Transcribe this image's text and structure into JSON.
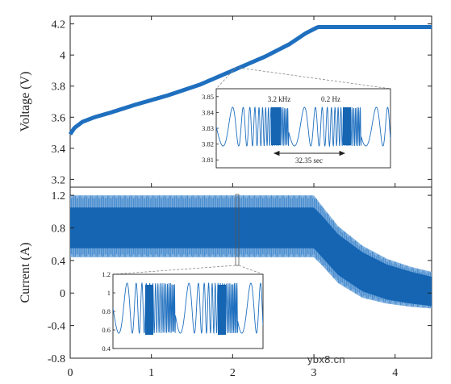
{
  "watermark": "ybx8.cn",
  "chart_data": [
    {
      "type": "line",
      "panel": "voltage",
      "ylabel": "Voltage (V)",
      "xlim": [
        0,
        4.45
      ],
      "ylim": [
        3.15,
        4.25
      ],
      "yticks": [
        "3.2",
        "3.4",
        "3.6",
        "3.8",
        "4",
        "4.2"
      ],
      "ytick_values": [
        3.2,
        3.4,
        3.6,
        3.8,
        4.0,
        4.2
      ],
      "color": "#1f6fbf",
      "series": [
        {
          "x": [
            0,
            0.05,
            0.15,
            0.3,
            0.5,
            0.8,
            1.2,
            1.6,
            2.0,
            2.4,
            2.7,
            2.9,
            3.05,
            3.5,
            4.0,
            4.45
          ],
          "y": [
            3.49,
            3.53,
            3.57,
            3.6,
            3.63,
            3.68,
            3.74,
            3.81,
            3.9,
            3.99,
            4.07,
            4.14,
            4.18,
            4.18,
            4.18,
            4.18
          ]
        }
      ],
      "inset": {
        "ylim": [
          3.805,
          3.855
        ],
        "yticks": [
          "3.81",
          "3.82",
          "3.83",
          "3.84",
          "3.85"
        ],
        "ytick_values": [
          3.81,
          3.82,
          3.83,
          3.84,
          3.85
        ],
        "annotations": [
          "3.2 kHz",
          "0.2 Hz",
          "32.35 sec"
        ]
      }
    },
    {
      "type": "line",
      "panel": "current",
      "xlabel": "",
      "ylabel": "Current (A)",
      "xlim": [
        0,
        4.45
      ],
      "ylim": [
        -0.8,
        1.3
      ],
      "xticks": [
        "0",
        "1",
        "2",
        "3",
        "4"
      ],
      "xtick_values": [
        0,
        1,
        2,
        3,
        4
      ],
      "yticks": [
        "-0.8",
        "-0.4",
        "0",
        "0.4",
        "0.8",
        "1.2"
      ],
      "ytick_values": [
        -0.8,
        -0.4,
        0,
        0.4,
        0.8,
        1.2
      ],
      "color": "#1f6fbf",
      "envelope": {
        "x": [
          0,
          2.5,
          3.0,
          3.1,
          3.3,
          3.6,
          3.9,
          4.2,
          4.45
        ],
        "outer_upper": [
          1.2,
          1.2,
          1.2,
          1.07,
          0.82,
          0.58,
          0.42,
          0.32,
          0.26
        ],
        "outer_lower": [
          0.44,
          0.44,
          0.44,
          0.34,
          0.12,
          -0.06,
          -0.13,
          -0.17,
          -0.19
        ],
        "core_upper": [
          1.05,
          1.05,
          1.05,
          0.95,
          0.72,
          0.5,
          0.35,
          0.26,
          0.2
        ],
        "core_lower": [
          0.55,
          0.55,
          0.55,
          0.44,
          0.22,
          0.02,
          -0.08,
          -0.13,
          -0.16
        ]
      },
      "inset": {
        "ylim": [
          0.4,
          1.2
        ],
        "yticks": [
          "0.4",
          "0.6",
          "0.8",
          "1",
          "1.2"
        ],
        "ytick_values": [
          0.4,
          0.6,
          0.8,
          1.0,
          1.2
        ]
      }
    }
  ]
}
